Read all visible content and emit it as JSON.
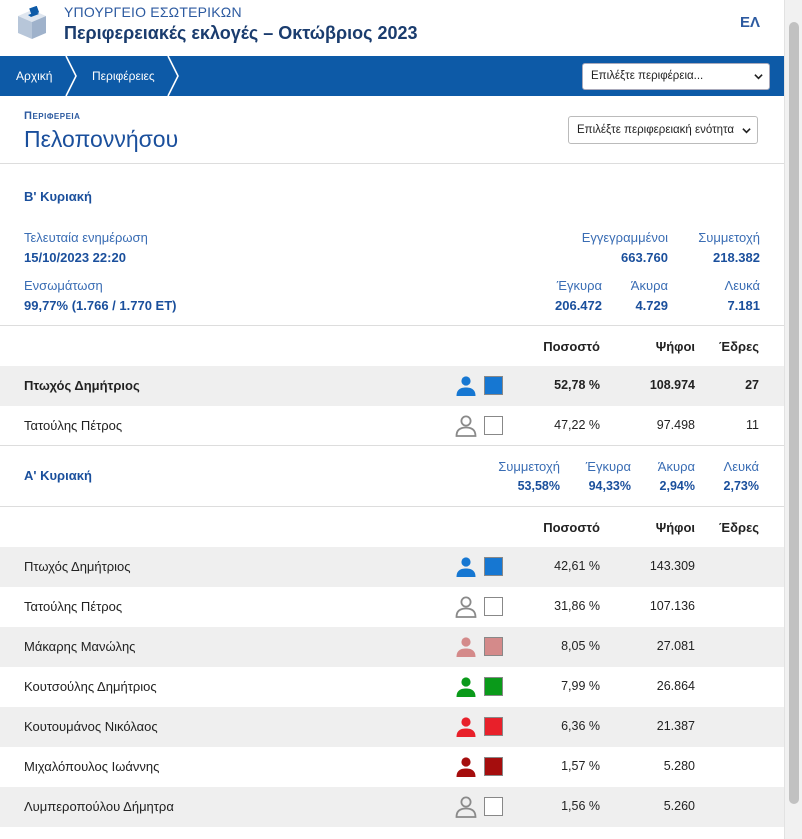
{
  "header": {
    "ministry": "ΥΠΟΥΡΓΕΙΟ ΕΣΩΤΕΡΙΚΩΝ",
    "title": "Περιφερειακές εκλογές – Οκτώβριος 2023",
    "lang": "ΕΛ"
  },
  "nav": {
    "home": "Αρχική",
    "regions": "Περιφέρειες",
    "region_select": "Επιλέξτε περιφέρεια..."
  },
  "region": {
    "label": "Περιφερεια",
    "name": "Πελοποννήσου",
    "unit_select": "Επιλέξτε περιφερειακή ενότητα"
  },
  "round_b": {
    "title": "Β' Κυριακή",
    "last_update_label": "Τελευταία ενημέρωση",
    "last_update": "15/10/2023 22:20",
    "registered_label": "Εγγεγραμμένοι",
    "registered": "663.760",
    "turnout_label": "Συμμετοχή",
    "turnout": "218.382",
    "integration_label": "Ενσωμάτωση",
    "integration": "99,77% (1.766 / 1.770 ΕΤ)",
    "valid_label": "Έγκυρα",
    "valid": "206.472",
    "invalid_label": "Άκυρα",
    "invalid": "4.729",
    "blank_label": "Λευκά",
    "blank": "7.181",
    "columns": {
      "pct": "Ποσοστό",
      "votes": "Ψήφοι",
      "seats": "Έδρες"
    },
    "rows": [
      {
        "name": "Πτωχός Δημήτριος",
        "pct": "52,78 %",
        "votes": "108.974",
        "seats": "27",
        "color": "#1677d2",
        "person": "#1677d2"
      },
      {
        "name": "Τατούλης Πέτρος",
        "pct": "47,22 %",
        "votes": "97.498",
        "seats": "11",
        "color": "#ffffff",
        "person": "#8a8a8a"
      }
    ]
  },
  "round_a": {
    "title": "Α' Κυριακή",
    "turnout_label": "Συμμετοχή",
    "turnout": "53,58%",
    "valid_label": "Έγκυρα",
    "valid": "94,33%",
    "invalid_label": "Άκυρα",
    "invalid": "2,94%",
    "blank_label": "Λευκά",
    "blank": "2,73%",
    "columns": {
      "pct": "Ποσοστό",
      "votes": "Ψήφοι",
      "seats": "Έδρες"
    },
    "rows": [
      {
        "name": "Πτωχός Δημήτριος",
        "pct": "42,61 %",
        "votes": "143.309",
        "color": "#1677d2",
        "person": "#1677d2"
      },
      {
        "name": "Τατούλης Πέτρος",
        "pct": "31,86 %",
        "votes": "107.136",
        "color": "#ffffff",
        "person": "#8a8a8a"
      },
      {
        "name": "Μάκαρης Μανώλης",
        "pct": "8,05 %",
        "votes": "27.081",
        "color": "#d48a8a",
        "person": "#d48a8a"
      },
      {
        "name": "Κουτσούλης Δημήτριος",
        "pct": "7,99 %",
        "votes": "26.864",
        "color": "#0a9a1a",
        "person": "#0a9a1a"
      },
      {
        "name": "Κουτουμάνος Νικόλαος",
        "pct": "6,36 %",
        "votes": "21.387",
        "color": "#e8202a",
        "person": "#e8202a"
      },
      {
        "name": "Μιχαλόπουλος Ιωάννης",
        "pct": "1,57 %",
        "votes": "5.280",
        "color": "#a50d0d",
        "person": "#a50d0d"
      },
      {
        "name": "Λυμπεροπούλου Δήμητρα",
        "pct": "1,56 %",
        "votes": "5.260",
        "color": "#ffffff",
        "person": "#8a8a8a"
      }
    ]
  }
}
